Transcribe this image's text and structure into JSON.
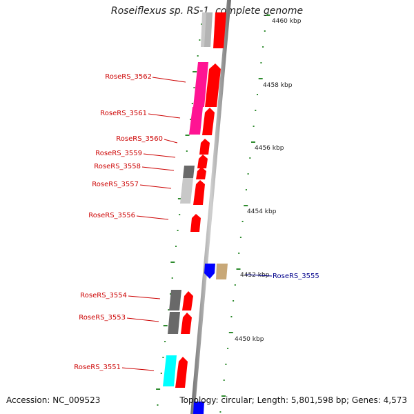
{
  "title": "Roseiflexus sp. RS-1, complete genome",
  "accession": "Accession: NC_009523",
  "topology": "Topology: circular; Length: 5,801,598 bp; Genes: 4,573",
  "colors": {
    "backbone": "#8c8c8c",
    "ticks": "#2e8b2e",
    "forward_gene": "#ff0000",
    "reverse_gene": "#0000ff",
    "label_red": "#cc0000",
    "label_blue": "#00008b"
  },
  "scale_labels": [
    {
      "kbp": 4460,
      "text": "4460 kbp"
    },
    {
      "kbp": 4458,
      "text": "4458 kbp"
    },
    {
      "kbp": 4456,
      "text": "4456 kbp"
    },
    {
      "kbp": 4454,
      "text": "4454 kbp"
    },
    {
      "kbp": 4452,
      "text": "4452 kbp"
    },
    {
      "kbp": 4450,
      "text": "4450 kbp"
    }
  ],
  "gene_labels": [
    {
      "text": "RoseRS_3562",
      "side": "left"
    },
    {
      "text": "RoseRS_3561",
      "side": "left"
    },
    {
      "text": "RoseRS_3560",
      "side": "left"
    },
    {
      "text": "RoseRS_3559",
      "side": "left"
    },
    {
      "text": "RoseRS_3558",
      "side": "left"
    },
    {
      "text": "RoseRS_3557",
      "side": "left"
    },
    {
      "text": "RoseRS_3556",
      "side": "left"
    },
    {
      "text": "RoseRS_3555",
      "side": "right"
    },
    {
      "text": "RoseRS_3554",
      "side": "left"
    },
    {
      "text": "RoseRS_3553",
      "side": "left"
    },
    {
      "text": "RoseRS_3551",
      "side": "left"
    }
  ],
  "cog_colors": [
    "#c8c8c8",
    "#ff1493",
    "#696969",
    "#c8a878",
    "#00ffff"
  ]
}
